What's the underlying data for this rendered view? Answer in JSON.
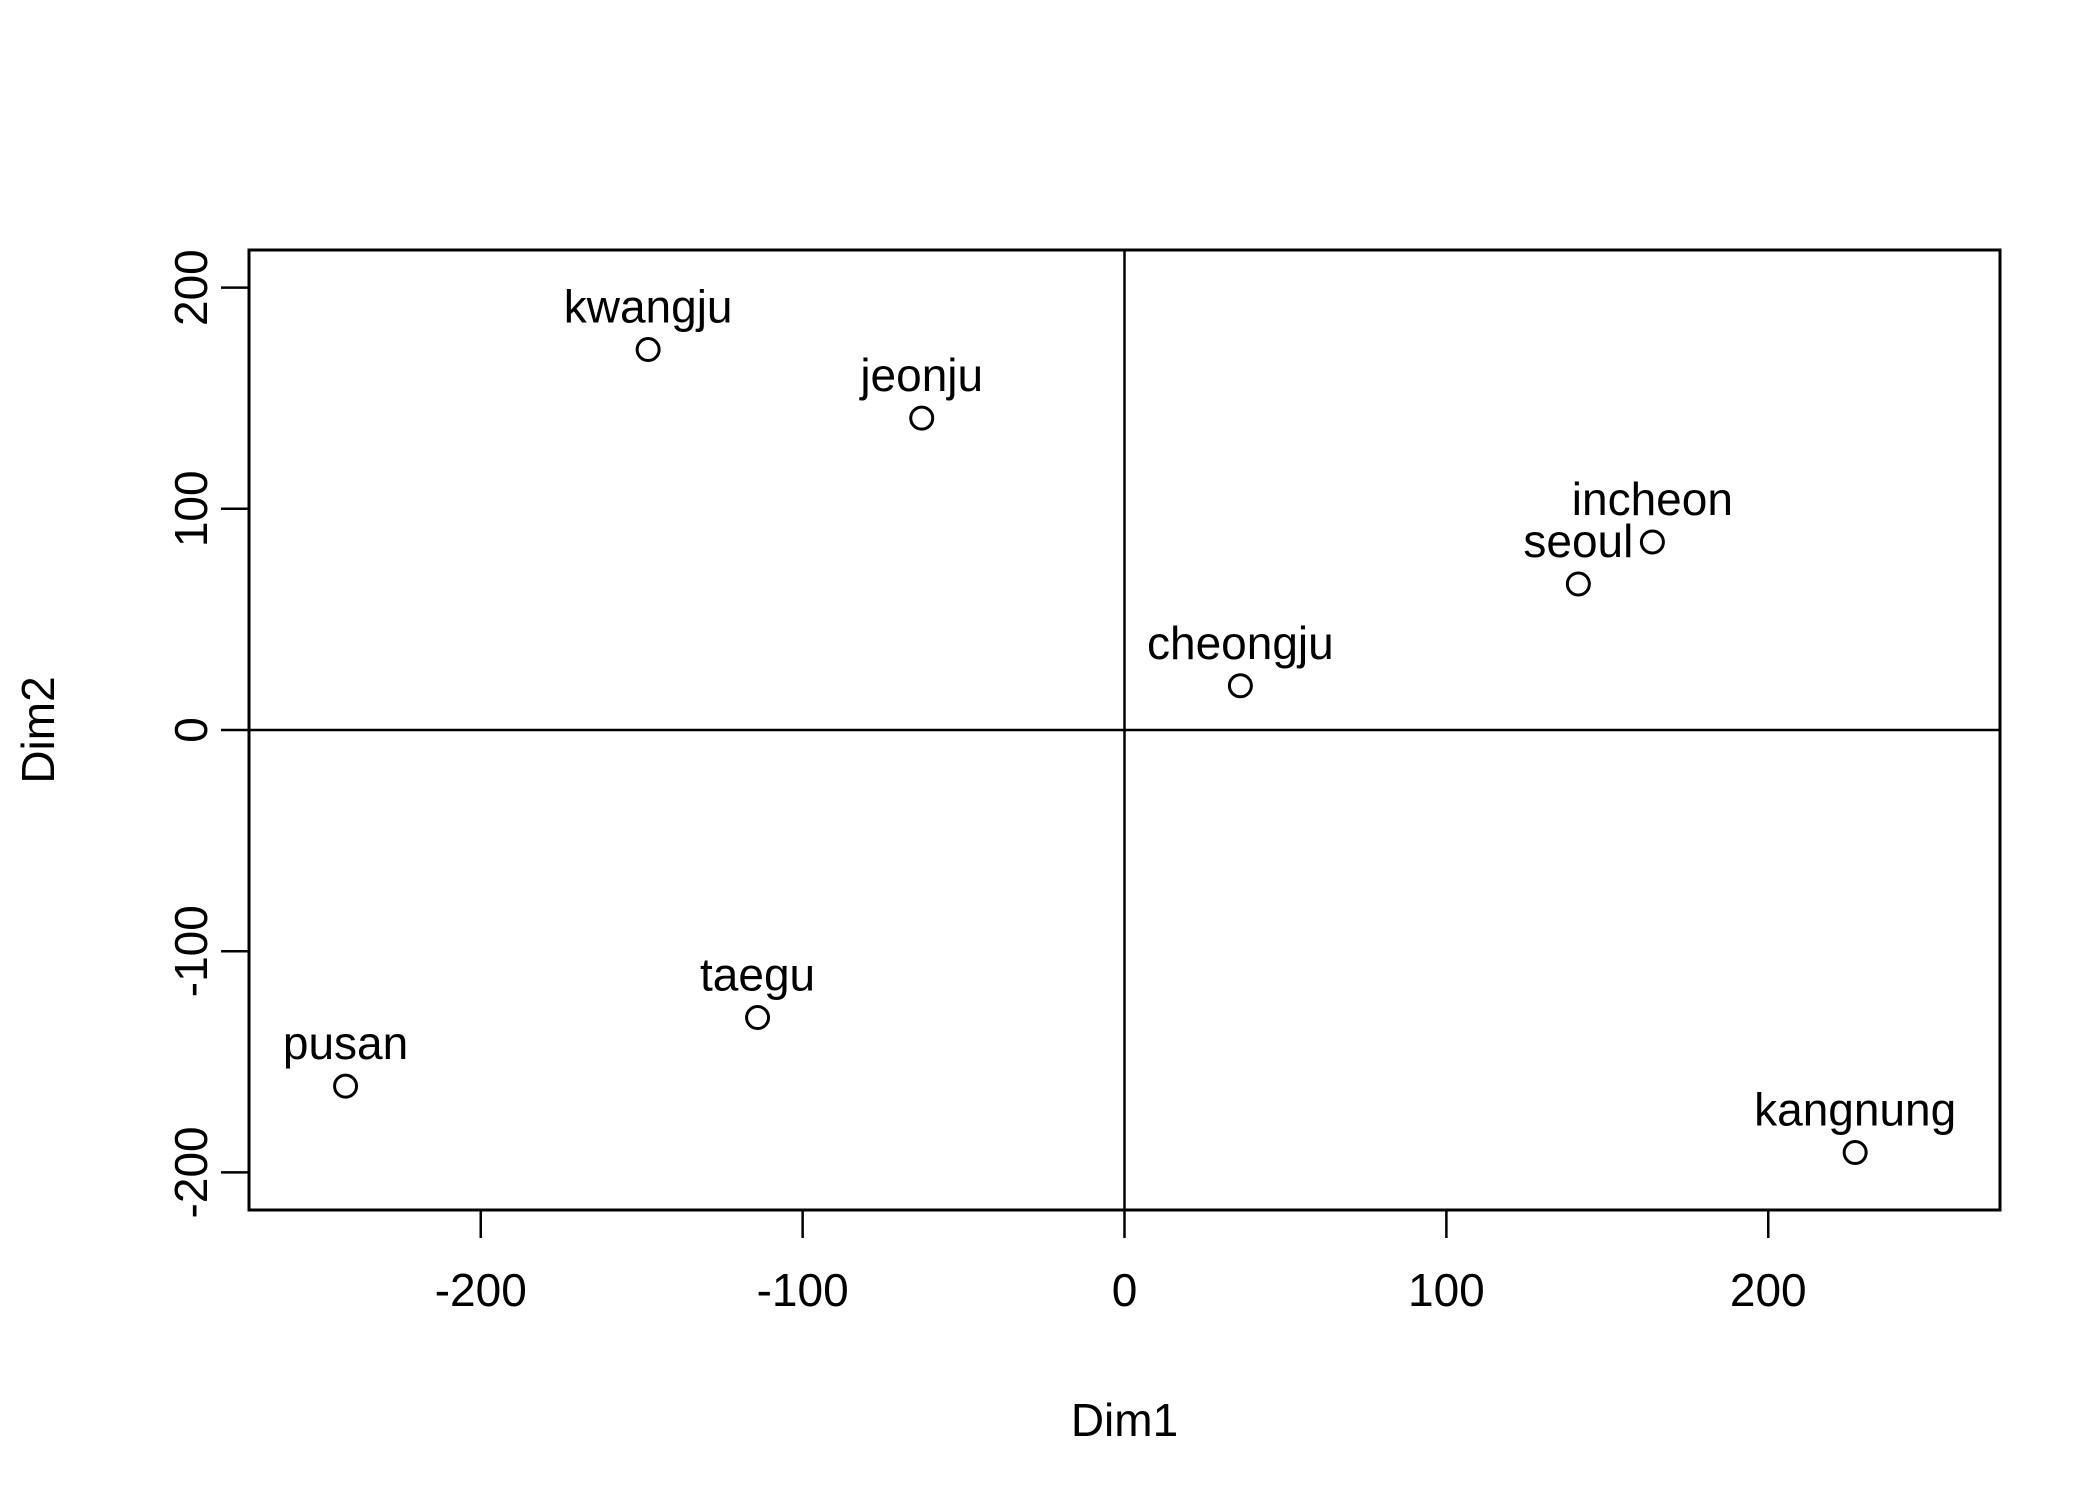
{
  "chart_data": {
    "type": "scatter",
    "title": "",
    "xlabel": "Dim1",
    "ylabel": "Dim2",
    "xlim": [
      -272,
      272
    ],
    "ylim": [
      -217,
      217
    ],
    "xticks": [
      -200,
      -100,
      0,
      100,
      200
    ],
    "yticks": [
      -200,
      -100,
      0,
      100,
      200
    ],
    "xtick_labels": [
      "-200",
      "-100",
      "0",
      "100",
      "200"
    ],
    "ytick_labels": [
      "-200",
      "-100",
      "0",
      "100",
      "200"
    ],
    "reference_lines": {
      "x": 0,
      "y": 0
    },
    "grid": false,
    "points": [
      {
        "label": "kwangju",
        "x": -148,
        "y": 172
      },
      {
        "label": "jeonju",
        "x": -63,
        "y": 141
      },
      {
        "label": "incheon",
        "x": 164,
        "y": 85
      },
      {
        "label": "seoul",
        "x": 141,
        "y": 66
      },
      {
        "label": "cheongju",
        "x": 36,
        "y": 20
      },
      {
        "label": "taegu",
        "x": -114,
        "y": -130
      },
      {
        "label": "pusan",
        "x": -242,
        "y": -161
      },
      {
        "label": "kangnung",
        "x": 227,
        "y": -191
      }
    ],
    "colors": {
      "marks": "#000000",
      "background": "#ffffff"
    }
  }
}
